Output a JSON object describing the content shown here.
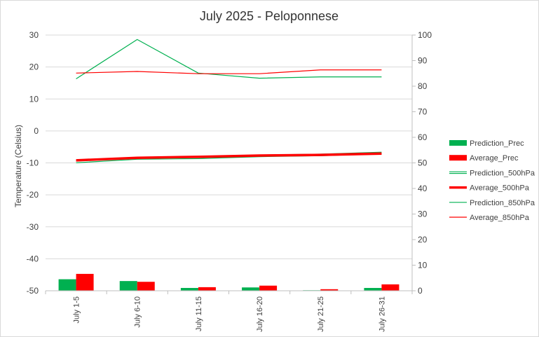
{
  "chart_data": {
    "type": "line",
    "title": "July 2025 - Peloponnese",
    "ylabel": "Temperature (Celsius)",
    "ylabel_right": "",
    "categories": [
      "July 1-5",
      "July 6-10",
      "July 11-15",
      "July 16-20",
      "July 21-25",
      "July 26-31"
    ],
    "ylim_left": [
      -50,
      30
    ],
    "yticks_left": [
      "30",
      "20",
      "10",
      "0",
      "-10",
      "-20",
      "-30",
      "-40",
      "-50"
    ],
    "ylim_right": [
      0,
      100
    ],
    "yticks_right": [
      "100",
      "90",
      "80",
      "70",
      "60",
      "50",
      "40",
      "30",
      "20",
      "10",
      "0"
    ],
    "grid": true,
    "legend_position": "right",
    "series": [
      {
        "name": "Prediction_Prec",
        "type": "bar",
        "axis": "right",
        "color": "#00b050",
        "values": [
          4.5,
          3.8,
          1.1,
          1.3,
          0.2,
          1.1
        ]
      },
      {
        "name": "Average_Prec",
        "type": "bar",
        "axis": "right",
        "color": "#ff0000",
        "values": [
          6.6,
          3.5,
          1.4,
          2.0,
          0.6,
          2.5
        ]
      },
      {
        "name": "Prediction_500hPa",
        "type": "line",
        "style": "double",
        "axis": "left",
        "color": "#00b050",
        "values": [
          -9.7,
          -8.6,
          -8.4,
          -7.8,
          -7.5,
          -6.9
        ]
      },
      {
        "name": "Average_500hPa",
        "type": "line",
        "style": "thick",
        "axis": "left",
        "color": "#ff0000",
        "values": [
          -9.2,
          -8.4,
          -8.1,
          -7.7,
          -7.5,
          -7.1
        ]
      },
      {
        "name": "Prediction_850hPa",
        "type": "line",
        "style": "thin",
        "axis": "left",
        "color": "#00b050",
        "values": [
          16.3,
          28.6,
          18.1,
          16.5,
          16.9,
          16.9
        ]
      },
      {
        "name": "Average_850hPa",
        "type": "line",
        "style": "thin",
        "axis": "left",
        "color": "#ff0000",
        "values": [
          18.1,
          18.6,
          17.9,
          17.9,
          19.1,
          19.1
        ]
      }
    ]
  }
}
